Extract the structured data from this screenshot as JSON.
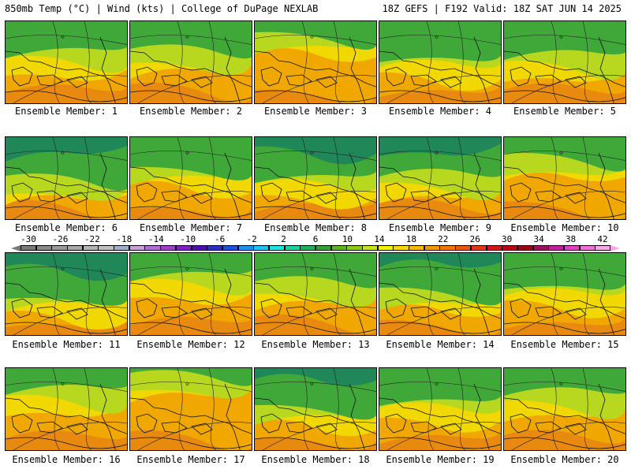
{
  "header": {
    "left": "850mb Temp (°C) | Wind (kts) | College of DuPage NEXLAB",
    "right": "18Z GEFS | F192 Valid: 18Z SAT JUN 14 2025"
  },
  "panels": [
    {
      "caption": "Ensemble Member: 1",
      "green_level": 0.45
    },
    {
      "caption": "Ensemble Member: 2",
      "green_level": 0.45
    },
    {
      "caption": "Ensemble Member: 3",
      "green_level": 0.25
    },
    {
      "caption": "Ensemble Member: 4",
      "green_level": 0.5
    },
    {
      "caption": "Ensemble Member: 5",
      "green_level": 0.5
    },
    {
      "caption": "Ensemble Member: 6",
      "green_level": 0.6
    },
    {
      "caption": "Ensemble Member: 7",
      "green_level": 0.45
    },
    {
      "caption": "Ensemble Member: 8",
      "green_level": 0.55
    },
    {
      "caption": "Ensemble Member: 9",
      "green_level": 0.55
    },
    {
      "caption": "Ensemble Member: 10",
      "green_level": 0.35
    },
    {
      "caption": "Ensemble Member: 11",
      "green_level": 0.6
    },
    {
      "caption": "Ensemble Member: 12",
      "green_level": 0.35
    },
    {
      "caption": "Ensemble Member: 13",
      "green_level": 0.45
    },
    {
      "caption": "Ensemble Member: 14",
      "green_level": 0.55
    },
    {
      "caption": "Ensemble Member: 15",
      "green_level": 0.45
    },
    {
      "caption": "Ensemble Member: 16",
      "green_level": 0.35
    },
    {
      "caption": "Ensemble Member: 17",
      "green_level": 0.2
    },
    {
      "caption": "Ensemble Member: 18",
      "green_level": 0.55
    },
    {
      "caption": "Ensemble Member: 19",
      "green_level": 0.45
    },
    {
      "caption": "Ensemble Member: 20",
      "green_level": 0.4
    }
  ],
  "colorbar": {
    "labels": [
      "-30",
      "-26",
      "-22",
      "-18",
      "-14",
      "-10",
      "-6",
      "-2",
      "2",
      "6",
      "10",
      "14",
      "18",
      "22",
      "26",
      "30",
      "34",
      "38",
      "42"
    ],
    "colors": [
      "#7a7a7a",
      "#8a8a8a",
      "#9a9a9a",
      "#a8a8a8",
      "#b4b4b4",
      "#c0c0c0",
      "#a0b0c8",
      "#c8a0d8",
      "#b070d0",
      "#a040c8",
      "#8020c0",
      "#5010b0",
      "#3030c0",
      "#2050d8",
      "#2090e8",
      "#20c0f0",
      "#20e0e0",
      "#20d0a0",
      "#20b060",
      "#30a030",
      "#60b020",
      "#90c818",
      "#c8e020",
      "#f0f000",
      "#f8d800",
      "#f8b800",
      "#f09800",
      "#f07800",
      "#e85810",
      "#e03818",
      "#d01818",
      "#b80818",
      "#980818",
      "#a01060",
      "#c020a0",
      "#e040c0",
      "#f070d8",
      "#f8a8e8"
    ]
  }
}
